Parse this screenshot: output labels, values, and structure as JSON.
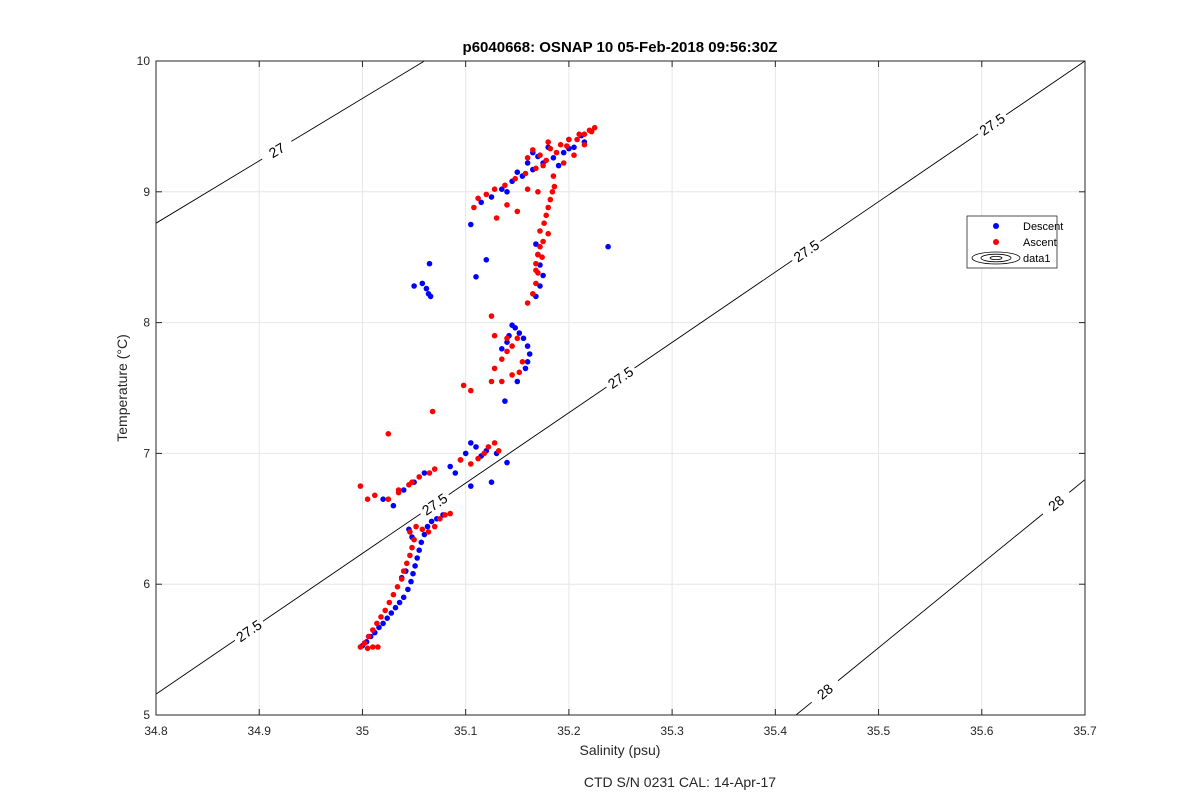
{
  "chart_data": {
    "type": "scatter",
    "title": "p6040668: OSNAP 10 05-Feb-2018 09:56:30Z",
    "xlabel": "Salinity (psu)",
    "ylabel": "Temperature (°C)",
    "xlim": [
      34.8,
      35.7
    ],
    "ylim": [
      5,
      10
    ],
    "xticks": [
      "34.8",
      "34.9",
      "35",
      "35.1",
      "35.2",
      "35.3",
      "35.4",
      "35.5",
      "35.6",
      "35.7"
    ],
    "yticks": [
      "5",
      "6",
      "7",
      "8",
      "9",
      "10"
    ],
    "grid": true,
    "footer": "CTD S/N 0231  CAL: 14-Apr-17",
    "legend": {
      "position": "right",
      "entries": [
        {
          "label": "Descent",
          "color": "#0000ff",
          "marker": "point"
        },
        {
          "label": "Ascent",
          "color": "#ff0000",
          "marker": "point"
        },
        {
          "label": "data1",
          "marker": "contour"
        }
      ]
    },
    "contours": [
      {
        "level": "27",
        "labels": [
          "27"
        ],
        "points": [
          [
            34.8,
            8.76
          ],
          [
            35.06,
            10.0
          ]
        ]
      },
      {
        "level": "27.5",
        "labels": [
          "27.5",
          "27.5",
          "27.5",
          "27.5",
          "27.5"
        ],
        "points": [
          [
            34.8,
            5.16
          ],
          [
            35.7,
            10.0
          ]
        ]
      },
      {
        "level": "28",
        "labels": [
          "28",
          "28"
        ],
        "points": [
          [
            35.42,
            5.0
          ],
          [
            35.7,
            6.8
          ]
        ]
      }
    ],
    "series": [
      {
        "name": "Descent",
        "color": "#0000ff",
        "points": [
          [
            35.0,
            5.53
          ],
          [
            35.004,
            5.56
          ],
          [
            35.008,
            5.6
          ],
          [
            35.012,
            5.63
          ],
          [
            35.016,
            5.67
          ],
          [
            35.02,
            5.7
          ],
          [
            35.024,
            5.74
          ],
          [
            35.028,
            5.78
          ],
          [
            35.032,
            5.82
          ],
          [
            35.036,
            5.86
          ],
          [
            35.04,
            5.9
          ],
          [
            35.044,
            5.96
          ],
          [
            35.047,
            6.02
          ],
          [
            35.049,
            6.08
          ],
          [
            35.051,
            6.14
          ],
          [
            35.053,
            6.2
          ],
          [
            35.055,
            6.26
          ],
          [
            35.057,
            6.32
          ],
          [
            35.06,
            6.38
          ],
          [
            35.063,
            6.44
          ],
          [
            35.067,
            6.48
          ],
          [
            35.072,
            6.5
          ],
          [
            35.078,
            6.53
          ],
          [
            35.045,
            6.42
          ],
          [
            35.048,
            6.36
          ],
          [
            35.042,
            6.1
          ],
          [
            35.038,
            6.05
          ],
          [
            35.03,
            6.6
          ],
          [
            35.04,
            6.72
          ],
          [
            35.05,
            6.78
          ],
          [
            35.06,
            6.85
          ],
          [
            35.02,
            6.65
          ],
          [
            35.085,
            6.9
          ],
          [
            35.095,
            6.95
          ],
          [
            35.1,
            7.0
          ],
          [
            35.105,
            7.08
          ],
          [
            35.11,
            7.05
          ],
          [
            35.115,
            6.98
          ],
          [
            35.12,
            7.02
          ],
          [
            35.13,
            7.0
          ],
          [
            35.14,
            6.93
          ],
          [
            35.125,
            6.78
          ],
          [
            35.105,
            6.75
          ],
          [
            35.09,
            6.85
          ],
          [
            35.05,
            8.28
          ],
          [
            35.058,
            8.3
          ],
          [
            35.062,
            8.26
          ],
          [
            35.064,
            8.22
          ],
          [
            35.066,
            8.2
          ],
          [
            35.065,
            8.45
          ],
          [
            35.11,
            8.35
          ],
          [
            35.12,
            8.48
          ],
          [
            35.105,
            8.75
          ],
          [
            35.115,
            8.92
          ],
          [
            35.138,
            7.4
          ],
          [
            35.15,
            7.55
          ],
          [
            35.158,
            7.65
          ],
          [
            35.16,
            7.7
          ],
          [
            35.162,
            7.76
          ],
          [
            35.16,
            7.82
          ],
          [
            35.156,
            7.88
          ],
          [
            35.152,
            7.92
          ],
          [
            35.148,
            7.96
          ],
          [
            35.145,
            7.98
          ],
          [
            35.14,
            7.85
          ],
          [
            35.135,
            7.8
          ],
          [
            35.142,
            7.9
          ],
          [
            35.168,
            8.2
          ],
          [
            35.172,
            8.28
          ],
          [
            35.175,
            8.36
          ],
          [
            35.172,
            8.44
          ],
          [
            35.17,
            8.52
          ],
          [
            35.168,
            8.6
          ],
          [
            35.125,
            8.96
          ],
          [
            35.135,
            9.02
          ],
          [
            35.145,
            9.08
          ],
          [
            35.155,
            9.12
          ],
          [
            35.165,
            9.17
          ],
          [
            35.175,
            9.22
          ],
          [
            35.185,
            9.26
          ],
          [
            35.195,
            9.3
          ],
          [
            35.205,
            9.34
          ],
          [
            35.215,
            9.38
          ],
          [
            35.16,
            9.22
          ],
          [
            35.165,
            9.3
          ],
          [
            35.18,
            9.34
          ],
          [
            35.2,
            9.4
          ],
          [
            35.212,
            9.43
          ],
          [
            35.15,
            9.15
          ],
          [
            35.19,
            9.2
          ],
          [
            35.2,
            9.33
          ],
          [
            35.17,
            9.27
          ],
          [
            35.14,
            9.0
          ],
          [
            35.238,
            8.58
          ]
        ]
      },
      {
        "name": "Ascent",
        "color": "#ff0000",
        "points": [
          [
            34.998,
            5.52
          ],
          [
            35.002,
            5.55
          ],
          [
            35.005,
            5.51
          ],
          [
            35.01,
            5.52
          ],
          [
            35.015,
            5.52
          ],
          [
            35.006,
            5.6
          ],
          [
            35.01,
            5.65
          ],
          [
            35.014,
            5.7
          ],
          [
            35.018,
            5.75
          ],
          [
            35.022,
            5.8
          ],
          [
            35.026,
            5.86
          ],
          [
            35.03,
            5.92
          ],
          [
            35.034,
            5.98
          ],
          [
            35.038,
            6.04
          ],
          [
            35.04,
            6.1
          ],
          [
            35.043,
            6.16
          ],
          [
            35.046,
            6.22
          ],
          [
            35.048,
            6.28
          ],
          [
            35.05,
            6.34
          ],
          [
            35.046,
            6.4
          ],
          [
            35.052,
            6.44
          ],
          [
            35.058,
            6.42
          ],
          [
            35.064,
            6.4
          ],
          [
            35.07,
            6.44
          ],
          [
            35.075,
            6.5
          ],
          [
            35.08,
            6.53
          ],
          [
            35.085,
            6.54
          ],
          [
            34.998,
            6.75
          ],
          [
            35.005,
            6.65
          ],
          [
            35.012,
            6.68
          ],
          [
            35.025,
            6.65
          ],
          [
            35.035,
            6.72
          ],
          [
            35.045,
            6.76
          ],
          [
            35.048,
            6.78
          ],
          [
            35.055,
            6.82
          ],
          [
            35.065,
            6.85
          ],
          [
            35.07,
            6.88
          ],
          [
            35.035,
            6.7
          ],
          [
            35.025,
            7.15
          ],
          [
            35.068,
            7.32
          ],
          [
            35.095,
            6.95
          ],
          [
            35.105,
            6.92
          ],
          [
            35.112,
            6.96
          ],
          [
            35.118,
            7.0
          ],
          [
            35.122,
            7.05
          ],
          [
            35.128,
            7.08
          ],
          [
            35.132,
            7.02
          ],
          [
            35.098,
            7.52
          ],
          [
            35.105,
            7.48
          ],
          [
            35.125,
            7.55
          ],
          [
            35.128,
            7.65
          ],
          [
            35.135,
            7.72
          ],
          [
            35.14,
            7.78
          ],
          [
            35.145,
            7.82
          ],
          [
            35.15,
            7.88
          ],
          [
            35.155,
            7.7
          ],
          [
            35.152,
            7.62
          ],
          [
            35.135,
            7.55
          ],
          [
            35.145,
            7.6
          ],
          [
            35.128,
            7.9
          ],
          [
            35.125,
            8.05
          ],
          [
            35.14,
            7.88
          ],
          [
            35.16,
            8.15
          ],
          [
            35.165,
            8.22
          ],
          [
            35.168,
            8.3
          ],
          [
            35.17,
            8.38
          ],
          [
            35.168,
            8.45
          ],
          [
            35.17,
            8.52
          ],
          [
            35.172,
            8.58
          ],
          [
            35.175,
            8.62
          ],
          [
            35.172,
            8.7
          ],
          [
            35.176,
            8.76
          ],
          [
            35.178,
            8.82
          ],
          [
            35.18,
            8.88
          ],
          [
            35.182,
            8.94
          ],
          [
            35.184,
            9.0
          ],
          [
            35.186,
            9.04
          ],
          [
            35.168,
            8.4
          ],
          [
            35.174,
            8.5
          ],
          [
            35.18,
            8.68
          ],
          [
            35.108,
            8.88
          ],
          [
            35.112,
            8.95
          ],
          [
            35.12,
            8.98
          ],
          [
            35.128,
            9.02
          ],
          [
            35.138,
            9.05
          ],
          [
            35.148,
            9.1
          ],
          [
            35.158,
            9.14
          ],
          [
            35.168,
            9.18
          ],
          [
            35.178,
            9.24
          ],
          [
            35.188,
            9.3
          ],
          [
            35.198,
            9.35
          ],
          [
            35.208,
            9.4
          ],
          [
            35.215,
            9.44
          ],
          [
            35.22,
            9.47
          ],
          [
            35.225,
            9.49
          ],
          [
            35.222,
            9.46
          ],
          [
            35.21,
            9.44
          ],
          [
            35.2,
            9.4
          ],
          [
            35.192,
            9.36
          ],
          [
            35.182,
            9.33
          ],
          [
            35.172,
            9.28
          ],
          [
            35.16,
            9.26
          ],
          [
            35.175,
            9.2
          ],
          [
            35.13,
            8.8
          ],
          [
            35.14,
            8.9
          ],
          [
            35.15,
            8.85
          ],
          [
            35.16,
            9.02
          ],
          [
            35.17,
            9.0
          ],
          [
            35.185,
            9.12
          ],
          [
            35.195,
            9.22
          ],
          [
            35.205,
            9.28
          ],
          [
            35.215,
            9.36
          ],
          [
            35.165,
            9.32
          ],
          [
            35.18,
            9.38
          ]
        ]
      }
    ]
  }
}
